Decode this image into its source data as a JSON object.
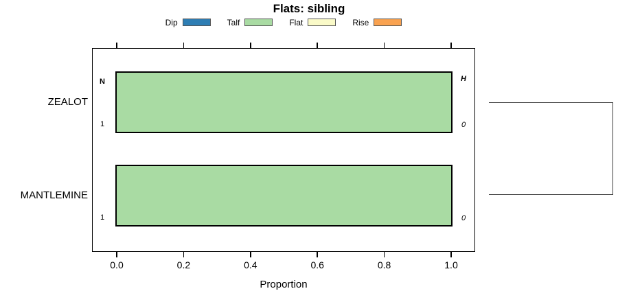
{
  "chart_data": {
    "type": "bar",
    "orientation": "horizontal",
    "title": "Flats: sibling",
    "xlabel": "Proportion",
    "xlim": [
      0,
      1
    ],
    "xticks": [
      "0.0",
      "0.2",
      "0.4",
      "0.6",
      "0.8",
      "1.0"
    ],
    "grid": false,
    "legend_position": "top",
    "legend": [
      {
        "label": "Dip",
        "color": "#2E7EB4"
      },
      {
        "label": "Talf",
        "color": "#A9DBA3"
      },
      {
        "label": "Flat",
        "color": "#FAFAC8"
      },
      {
        "label": "Rise",
        "color": "#F9A250"
      }
    ],
    "categories": [
      "ZEALOT",
      "MANTLEMINE"
    ],
    "series": [
      {
        "name": "Dip",
        "values": [
          0,
          0
        ]
      },
      {
        "name": "Talf",
        "values": [
          1.0,
          1.0
        ]
      },
      {
        "name": "Flat",
        "values": [
          0,
          0
        ]
      },
      {
        "name": "Rise",
        "values": [
          0,
          0
        ]
      }
    ],
    "row_labels": [
      {
        "left_top": "N",
        "left_bottom": "1",
        "right_top": "H",
        "right_bottom": "0"
      },
      {
        "left_top": "",
        "left_bottom": "1",
        "right_top": "",
        "right_bottom": "0"
      }
    ],
    "right_bracket_groups": [
      [
        "ZEALOT",
        "MANTLEMINE"
      ]
    ]
  }
}
